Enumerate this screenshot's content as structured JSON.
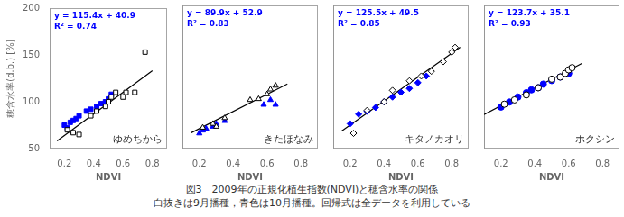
{
  "caption": [
    "図3　2009年の正規化植生指数(NDVI)と穂含水率の関係",
    "白抜きは9月播種，青色は10月播種。回帰式は全データを利用している"
  ],
  "chart_data": [
    {
      "type": "scatter",
      "xlabel": "NDVI",
      "ylabel": "穂含水率(d.b.) [%]",
      "grid": false,
      "xlim": [
        0.1,
        0.9
      ],
      "xticks": [
        0.2,
        0.4,
        0.6,
        0.8
      ],
      "ylim": [
        50,
        200
      ],
      "yticks": [
        50,
        100,
        150,
        200
      ],
      "annotations": [
        {
          "text": "y = 115.4x + 40.9",
          "color": "#0000FF"
        },
        {
          "text": "R² = 0.74",
          "color": "#0000FF"
        },
        {
          "text": "ゆめちから"
        }
      ],
      "series": [
        {
          "type": "line",
          "color": "black",
          "x": [
            0.15,
            0.8
          ],
          "values": [
            58.21,
            133.22
          ]
        },
        {
          "marker": "open square",
          "color": "black",
          "x": [
            0.22,
            0.26,
            0.3,
            0.38,
            0.42,
            0.48,
            0.5,
            0.52,
            0.55,
            0.6,
            0.62,
            0.68,
            0.75
          ],
          "values": [
            70,
            67,
            65,
            85,
            90,
            95,
            100,
            105,
            110,
            105,
            110,
            110,
            153
          ]
        },
        {
          "marker": "square",
          "color": "#0000FF",
          "x": [
            0.2,
            0.22,
            0.24,
            0.26,
            0.28,
            0.3,
            0.35,
            0.38,
            0.42,
            0.45,
            0.48,
            0.5,
            0.52
          ],
          "values": [
            75,
            72,
            78,
            80,
            82,
            85,
            90,
            92,
            95,
            98,
            100,
            103,
            108
          ]
        }
      ]
    },
    {
      "type": "scatter",
      "xlabel": "NDVI",
      "grid": false,
      "tick_labels": "x",
      "xlim": [
        0.1,
        0.9
      ],
      "xticks": [
        0.2,
        0.4,
        0.6,
        0.8
      ],
      "ylim": [
        50,
        200
      ],
      "yticks": [
        50,
        100,
        150,
        200
      ],
      "annotations": [
        {
          "text": "y = 89.9x + 52.9",
          "color": "#0000FF"
        },
        {
          "text": "R² = 0.83",
          "color": "#0000FF"
        },
        {
          "text": "きたほなみ"
        }
      ],
      "series": [
        {
          "type": "line",
          "color": "black",
          "x": [
            0.15,
            0.72
          ],
          "values": [
            66.385,
            117.628
          ]
        },
        {
          "marker": "open triangle",
          "color": "black",
          "x": [
            0.22,
            0.28,
            0.3,
            0.35,
            0.5,
            0.55,
            0.6,
            0.62,
            0.65
          ],
          "values": [
            72,
            76,
            73,
            82,
            101,
            102,
            107,
            112,
            116
          ]
        },
        {
          "marker": "triangle",
          "color": "#0000FF",
          "x": [
            0.2,
            0.22,
            0.24,
            0.28,
            0.3,
            0.35,
            0.58,
            0.62,
            0.65
          ],
          "values": [
            66,
            69,
            71,
            73,
            76,
            79,
            96,
            101,
            96
          ]
        }
      ]
    },
    {
      "type": "scatter",
      "xlabel": "NDVI",
      "grid": false,
      "tick_labels": "x",
      "xlim": [
        0.1,
        0.9
      ],
      "xticks": [
        0.2,
        0.4,
        0.6,
        0.8
      ],
      "ylim": [
        50,
        200
      ],
      "yticks": [
        50,
        100,
        150,
        200
      ],
      "annotations": [
        {
          "text": "y = 125.5x + 49.5",
          "color": "#0000FF"
        },
        {
          "text": "R² = 0.85",
          "color": "#0000FF"
        },
        {
          "text": "キタノカオリ"
        }
      ],
      "series": [
        {
          "type": "line",
          "color": "black",
          "x": [
            0.15,
            0.85
          ],
          "values": [
            68.325,
            156.175
          ]
        },
        {
          "marker": "open diamond",
          "color": "black",
          "x": [
            0.22,
            0.3,
            0.4,
            0.45,
            0.55,
            0.62,
            0.68,
            0.75,
            0.8,
            0.82
          ],
          "values": [
            66,
            90,
            99,
            111,
            121,
            126,
            131,
            141,
            151,
            156
          ]
        },
        {
          "marker": "diamond",
          "color": "#0000FF",
          "x": [
            0.2,
            0.25,
            0.3,
            0.35,
            0.4,
            0.45,
            0.5,
            0.55,
            0.6,
            0.65
          ],
          "values": [
            76,
            86,
            89,
            93,
            99,
            104,
            109,
            113,
            119,
            126
          ]
        }
      ]
    },
    {
      "type": "scatter",
      "xlabel": "NDVI",
      "grid": false,
      "tick_labels": "x",
      "xlim": [
        0.1,
        0.9
      ],
      "xticks": [
        0.2,
        0.4,
        0.6,
        0.8
      ],
      "ylim": [
        0,
        200
      ],
      "yticks": [
        0,
        50,
        100,
        150,
        200
      ],
      "annotations": [
        {
          "text": "y = 123.7x + 35.1",
          "color": "#0000FF"
        },
        {
          "text": "R² = 0.93",
          "color": "#0000FF"
        },
        {
          "text": "ホクシン"
        }
      ],
      "series": [
        {
          "type": "line",
          "color": "black",
          "x": [
            0.1,
            0.68
          ],
          "values": [
            47.47,
            119.216
          ]
        },
        {
          "marker": "open circle",
          "color": "black",
          "x": [
            0.22,
            0.28,
            0.35,
            0.42,
            0.5,
            0.55,
            0.58,
            0.6,
            0.62
          ],
          "values": [
            62,
            68,
            75,
            85,
            97,
            100,
            105,
            110,
            113
          ]
        },
        {
          "marker": "circle",
          "color": "#0000FF",
          "x": [
            0.2,
            0.25,
            0.3,
            0.35,
            0.38,
            0.42,
            0.45,
            0.5,
            0.55,
            0.6
          ],
          "values": [
            58,
            65,
            72,
            78,
            82,
            85,
            90,
            95,
            100,
            105
          ]
        }
      ]
    }
  ]
}
